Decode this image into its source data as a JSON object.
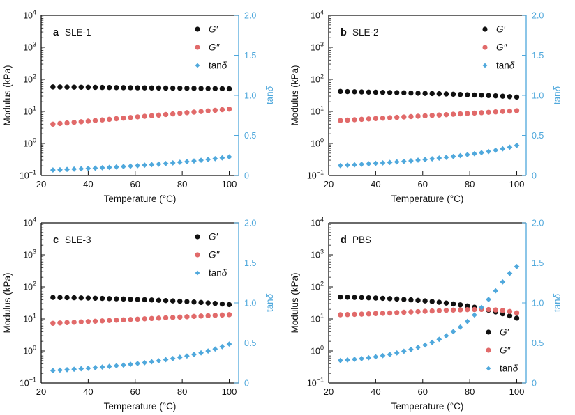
{
  "figure": {
    "axes": {
      "x": {
        "title": "Temperature (°C)",
        "range": [
          20,
          104
        ],
        "ticks": [
          20,
          40,
          60,
          80,
          100
        ],
        "tick_labels": [
          "20",
          "40",
          "60",
          "80",
          "100"
        ]
      },
      "y_left": {
        "title": "Modulus (kPa)",
        "scale": "log",
        "exp_range": [
          -1,
          4
        ],
        "tick_exponents": [
          -1,
          0,
          1,
          2,
          3,
          4
        ]
      },
      "y_right": {
        "title": "tanδ",
        "range": [
          0,
          2
        ],
        "ticks": [
          0,
          0.5,
          1.0,
          1.5,
          2.0
        ],
        "tick_labels": [
          "0",
          "0.5",
          "1.0",
          "1.5",
          "2.0"
        ]
      }
    },
    "colors": {
      "gprime": "#111111",
      "gdouble": "#e16a6a",
      "tand": "#4fa8dc",
      "axis": "#111111",
      "right_axis": "#4fa8dc"
    }
  },
  "chart_data": [
    {
      "type": "scatter",
      "panel_letter": "a",
      "title": "SLE-1",
      "xlabel": "Temperature (°C)",
      "ylabel_left": "Modulus (kPa)",
      "ylabel_right": "tanδ",
      "xlim": [
        20,
        104
      ],
      "ylim_left_log_exp": [
        -1,
        4
      ],
      "ylim_right": [
        0,
        2
      ],
      "legend_position": "top-right",
      "x": [
        25,
        28,
        31,
        34,
        37,
        40,
        43,
        46,
        49,
        52,
        55,
        58,
        61,
        64,
        67,
        70,
        73,
        76,
        79,
        82,
        85,
        88,
        91,
        94,
        97,
        100
      ],
      "series": [
        {
          "name": "G′",
          "axis": "left",
          "marker": "circle",
          "color_key": "gprime",
          "values": [
            58,
            57.7,
            57.4,
            57.2,
            56.9,
            56.6,
            56.3,
            56,
            55.8,
            55.5,
            55.2,
            54.9,
            54.6,
            54.4,
            54.1,
            53.8,
            53.5,
            53.2,
            53,
            52.7,
            52.4,
            52.1,
            51.8,
            51.6,
            51.3,
            51
          ]
        },
        {
          "name": "G″",
          "axis": "left",
          "marker": "circle",
          "color_key": "gdouble",
          "values": [
            4,
            4.18,
            4.36,
            4.56,
            4.76,
            4.97,
            5.19,
            5.42,
            5.66,
            5.91,
            6.17,
            6.44,
            6.73,
            7.02,
            7.33,
            7.66,
            8,
            8.35,
            8.72,
            9.11,
            9.51,
            9.93,
            10.37,
            10.83,
            11.31,
            11.81
          ]
        },
        {
          "name": "tanδ",
          "axis": "right",
          "marker": "diamond",
          "color_key": "tand",
          "values": [
            0.069,
            0.072,
            0.076,
            0.08,
            0.084,
            0.088,
            0.092,
            0.097,
            0.101,
            0.106,
            0.112,
            0.117,
            0.123,
            0.129,
            0.136,
            0.142,
            0.149,
            0.157,
            0.165,
            0.173,
            0.181,
            0.19,
            0.2,
            0.21,
            0.22,
            0.232
          ]
        }
      ]
    },
    {
      "type": "scatter",
      "panel_letter": "b",
      "title": "SLE-2",
      "xlabel": "Temperature (°C)",
      "ylabel_left": "Modulus (kPa)",
      "ylabel_right": "tanδ",
      "xlim": [
        20,
        104
      ],
      "ylim_left_log_exp": [
        -1,
        4
      ],
      "ylim_right": [
        0,
        2
      ],
      "legend_position": "top-right",
      "x": [
        25,
        28,
        31,
        34,
        37,
        40,
        43,
        46,
        49,
        52,
        55,
        58,
        61,
        64,
        67,
        70,
        73,
        76,
        79,
        82,
        85,
        88,
        91,
        94,
        97,
        100
      ],
      "series": [
        {
          "name": "G′",
          "axis": "left",
          "marker": "circle",
          "color_key": "gprime",
          "values": [
            42,
            41.5,
            41,
            40.5,
            40,
            39.6,
            39.2,
            38.8,
            38.4,
            38,
            37.5,
            37,
            36.5,
            36,
            35.5,
            35,
            34.4,
            33.8,
            33.2,
            32.6,
            32,
            31.3,
            30.6,
            29.8,
            28.9,
            28
          ]
        },
        {
          "name": "G″",
          "axis": "left",
          "marker": "circle",
          "color_key": "gdouble",
          "values": [
            5.2,
            5.35,
            5.5,
            5.66,
            5.82,
            5.98,
            6.15,
            6.33,
            6.51,
            6.69,
            6.88,
            7.08,
            7.28,
            7.49,
            7.7,
            7.92,
            8.14,
            8.38,
            8.62,
            8.86,
            9.11,
            9.37,
            9.64,
            9.91,
            10.2,
            10.49
          ]
        },
        {
          "name": "tanδ",
          "axis": "right",
          "marker": "diamond",
          "color_key": "tand",
          "values": [
            0.124,
            0.129,
            0.134,
            0.14,
            0.146,
            0.151,
            0.157,
            0.163,
            0.17,
            0.176,
            0.183,
            0.191,
            0.199,
            0.208,
            0.217,
            0.226,
            0.237,
            0.248,
            0.26,
            0.272,
            0.285,
            0.299,
            0.315,
            0.333,
            0.353,
            0.375
          ]
        }
      ]
    },
    {
      "type": "scatter",
      "panel_letter": "c",
      "title": "SLE-3",
      "xlabel": "Temperature (°C)",
      "ylabel_left": "Modulus (kPa)",
      "ylabel_right": "tanδ",
      "xlim": [
        20,
        104
      ],
      "ylim_left_log_exp": [
        -1,
        4
      ],
      "ylim_right": [
        0,
        2
      ],
      "legend_position": "top-right",
      "x": [
        25,
        28,
        31,
        34,
        37,
        40,
        43,
        46,
        49,
        52,
        55,
        58,
        61,
        64,
        67,
        70,
        73,
        76,
        79,
        82,
        85,
        88,
        91,
        94,
        97,
        100
      ],
      "series": [
        {
          "name": "G′",
          "axis": "left",
          "marker": "circle",
          "color_key": "gprime",
          "values": [
            47,
            46.6,
            46.2,
            45.8,
            45.3,
            44.8,
            44.3,
            43.7,
            43.1,
            42.5,
            41.9,
            41.2,
            40.5,
            39.8,
            39,
            38.2,
            37.4,
            36.5,
            35.6,
            34.7,
            33.7,
            32.7,
            31.6,
            30.5,
            29.3,
            28
          ]
        },
        {
          "name": "G″",
          "axis": "left",
          "marker": "circle",
          "color_key": "gdouble",
          "values": [
            7.3,
            7.48,
            7.67,
            7.86,
            8.06,
            8.27,
            8.47,
            8.69,
            8.91,
            9.13,
            9.36,
            9.6,
            9.84,
            10.09,
            10.34,
            10.6,
            10.87,
            11.14,
            11.42,
            11.71,
            12.01,
            12.31,
            12.62,
            12.94,
            13.26,
            13.6
          ]
        },
        {
          "name": "tanδ",
          "axis": "right",
          "marker": "diamond",
          "color_key": "tand",
          "values": [
            0.155,
            0.161,
            0.166,
            0.172,
            0.178,
            0.184,
            0.191,
            0.199,
            0.207,
            0.215,
            0.223,
            0.233,
            0.243,
            0.253,
            0.265,
            0.277,
            0.291,
            0.305,
            0.321,
            0.337,
            0.356,
            0.376,
            0.399,
            0.424,
            0.453,
            0.486
          ]
        }
      ]
    },
    {
      "type": "scatter",
      "panel_letter": "d",
      "title": "PBS",
      "xlabel": "Temperature (°C)",
      "ylabel_left": "Modulus (kPa)",
      "ylabel_right": "tanδ",
      "xlim": [
        20,
        104
      ],
      "ylim_left_log_exp": [
        -1,
        4
      ],
      "ylim_right": [
        0,
        2
      ],
      "legend_position": "bottom-right",
      "x": [
        25,
        28,
        31,
        34,
        37,
        40,
        43,
        46,
        49,
        52,
        55,
        58,
        61,
        64,
        67,
        70,
        73,
        76,
        79,
        82,
        85,
        88,
        91,
        94,
        97,
        100
      ],
      "series": [
        {
          "name": "G′",
          "axis": "left",
          "marker": "circle",
          "color_key": "gprime",
          "values": [
            48,
            47.5,
            47,
            46.4,
            45.7,
            44.9,
            44,
            43,
            41.9,
            40.7,
            39.4,
            38,
            36.5,
            34.9,
            33.2,
            31.4,
            29.5,
            27.5,
            25.4,
            23.2,
            21,
            18.8,
            16.6,
            14.5,
            12.5,
            10.6
          ]
        },
        {
          "name": "G″",
          "axis": "left",
          "marker": "circle",
          "color_key": "gdouble",
          "values": [
            13.5,
            13.7,
            13.9,
            14.1,
            14.4,
            14.7,
            15,
            15.3,
            15.7,
            16.1,
            16.5,
            16.9,
            17.3,
            17.7,
            18.1,
            18.5,
            18.9,
            19.2,
            19.5,
            19.7,
            19.8,
            19.6,
            19.1,
            18.3,
            17.1,
            15.4
          ]
        },
        {
          "name": "tanδ",
          "axis": "right",
          "marker": "diamond",
          "color_key": "tand",
          "values": [
            0.281,
            0.288,
            0.296,
            0.304,
            0.315,
            0.327,
            0.341,
            0.356,
            0.375,
            0.396,
            0.419,
            0.445,
            0.474,
            0.507,
            0.545,
            0.589,
            0.641,
            0.698,
            0.768,
            0.849,
            0.943,
            1.043,
            1.151,
            1.262,
            1.368,
            1.453
          ]
        }
      ]
    }
  ]
}
